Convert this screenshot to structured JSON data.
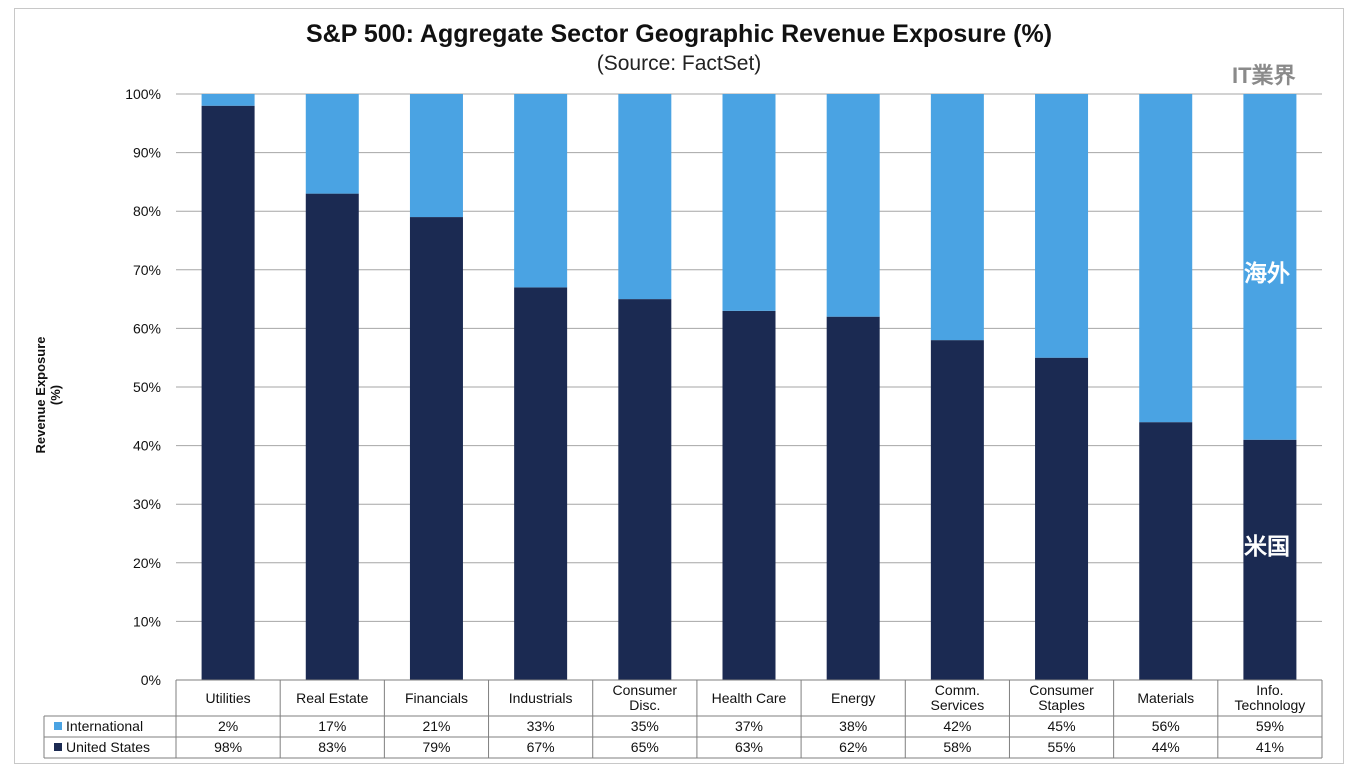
{
  "chart_data": {
    "type": "bar",
    "stacked": true,
    "title": "S&P 500: Aggregate Sector Geographic Revenue Exposure (%)",
    "subtitle": "(Source: FactSet)",
    "ylabel": "Revenue Exposure (%)",
    "ylim": [
      0,
      100
    ],
    "yticks": [
      "0%",
      "10%",
      "20%",
      "30%",
      "40%",
      "50%",
      "60%",
      "70%",
      "80%",
      "90%",
      "100%"
    ],
    "categories": [
      [
        "Utilities"
      ],
      [
        "Real Estate"
      ],
      [
        "Financials"
      ],
      [
        "Industrials"
      ],
      [
        "Consumer",
        "Disc."
      ],
      [
        "Health Care"
      ],
      [
        "Energy"
      ],
      [
        "Comm.",
        "Services"
      ],
      [
        "Consumer",
        "Staples"
      ],
      [
        "Materials"
      ],
      [
        "Info.",
        "Technology"
      ]
    ],
    "series": [
      {
        "name": "United States",
        "color": "#1b2a52",
        "values": [
          98,
          83,
          79,
          67,
          65,
          63,
          62,
          58,
          55,
          44,
          41
        ],
        "labels": [
          "98%",
          "83%",
          "79%",
          "67%",
          "65%",
          "63%",
          "62%",
          "58%",
          "55%",
          "44%",
          "41%"
        ]
      },
      {
        "name": "International",
        "color": "#4aa3e3",
        "values": [
          2,
          17,
          21,
          33,
          35,
          37,
          38,
          42,
          45,
          56,
          59
        ],
        "labels": [
          "2%",
          "17%",
          "21%",
          "33%",
          "35%",
          "37%",
          "38%",
          "42%",
          "45%",
          "56%",
          "59%"
        ]
      }
    ],
    "grid": true,
    "legend": "data-table-left"
  },
  "annotations": {
    "watermark": "IT業界",
    "international": "海外",
    "united_states": "米国"
  }
}
